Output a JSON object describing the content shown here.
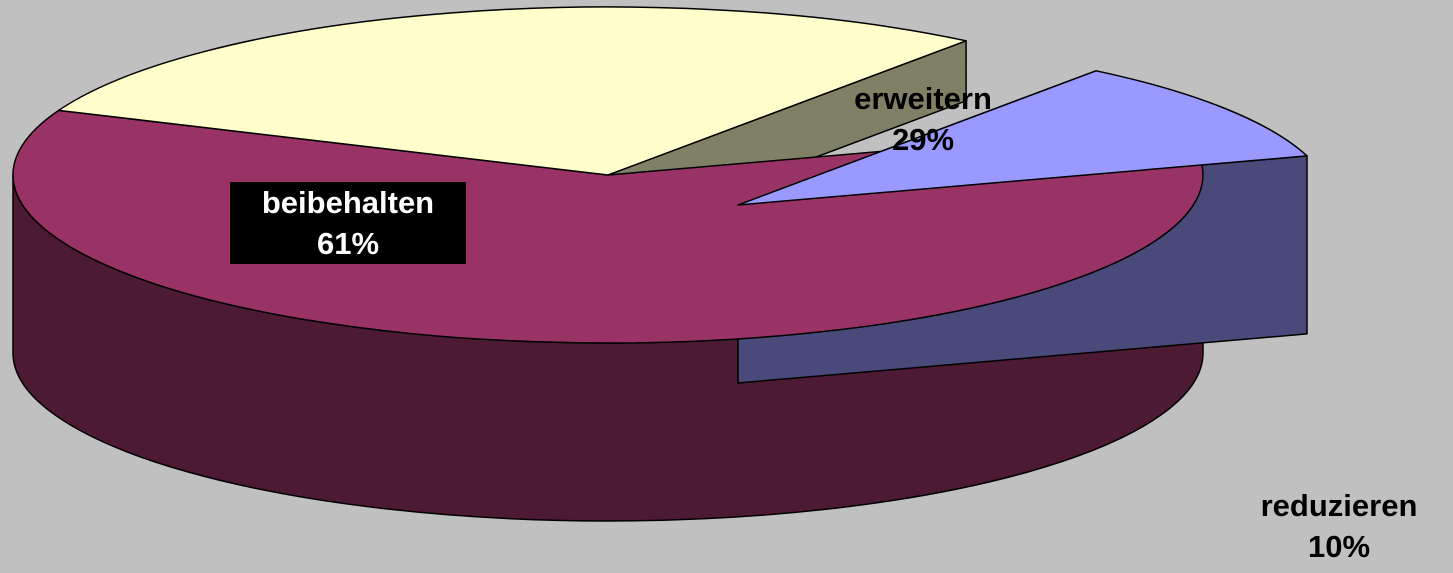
{
  "chart_data": {
    "type": "pie",
    "three_d": true,
    "exploded_slice": "reduzieren",
    "slices": [
      {
        "label": "beibehalten",
        "value": 61,
        "value_label": "61%",
        "color": "#993366"
      },
      {
        "label": "erweitern",
        "value": 29,
        "value_label": "29%",
        "color": "#ffffcc"
      },
      {
        "label": "reduzieren",
        "value": 10,
        "value_label": "10%",
        "color": "#9999ff"
      }
    ],
    "background": "#c0c0c0",
    "legend": "none"
  }
}
